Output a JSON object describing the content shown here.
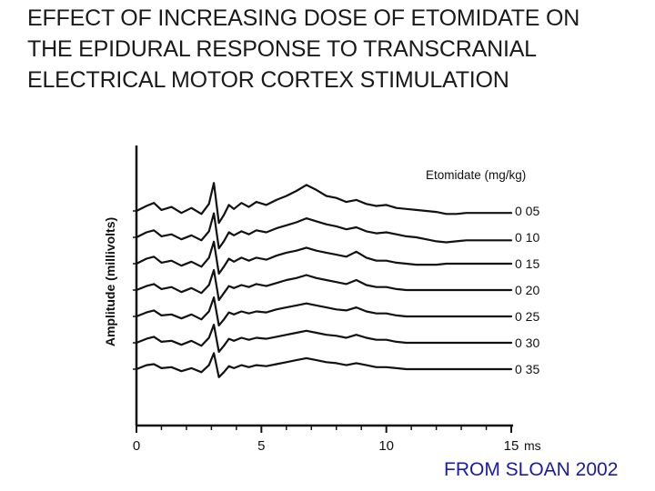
{
  "slide": {
    "title_lines": [
      "EFFECT OF INCREASING DOSE OF ETOMIDATE ON",
      "THE EPIDURAL RESPONSE TO TRANSCRANIAL",
      "ELECTRICAL MOTOR CORTEX STIMULATION"
    ],
    "credit": "FROM SLOAN 2002"
  },
  "chart_data": {
    "type": "line",
    "title": "",
    "xlabel": "ms",
    "ylabel": "Amplitude (millivolts)",
    "legend_title": "Etomidate (mg/kg)",
    "x_ticks": [
      "0",
      "5",
      "10",
      "15"
    ],
    "xlim": [
      0,
      15
    ],
    "y_units": "relative (traces vertically offset, no amplitude scale shown)",
    "grid": false,
    "series": [
      {
        "name": "0 05",
        "dose_mg_per_kg": 0.05,
        "x": [
          0,
          0.4,
          0.7,
          1,
          1.4,
          1.8,
          2.2,
          2.6,
          2.9,
          3.1,
          3.3,
          3.5,
          3.7,
          3.9,
          4.2,
          4.5,
          4.8,
          5.2,
          5.6,
          6,
          6.4,
          6.8,
          7.2,
          7.6,
          8,
          8.4,
          8.8,
          9.2,
          9.6,
          10,
          10.4,
          10.8,
          11.2,
          11.6,
          12,
          12.4,
          12.8,
          13.2,
          13.6,
          14,
          14.4,
          14.8,
          15
        ],
        "y": [
          0,
          0.5,
          0.8,
          0.1,
          0.4,
          -0.2,
          0.3,
          -0.3,
          0.7,
          2.8,
          -1.2,
          -0.4,
          0.6,
          0.2,
          0.8,
          0.4,
          0.9,
          0.6,
          1.1,
          1.5,
          2,
          2.6,
          2.1,
          1.5,
          1.3,
          0.9,
          1.1,
          0.7,
          0.5,
          0.6,
          0.3,
          0.2,
          0.1,
          0,
          -0.1,
          -0.3,
          -0.3,
          -0.2,
          -0.2,
          -0.2,
          -0.2,
          -0.2,
          -0.2
        ]
      },
      {
        "name": "0 10",
        "dose_mg_per_kg": 0.1,
        "x": [
          0,
          0.4,
          0.7,
          1,
          1.4,
          1.8,
          2.2,
          2.6,
          2.9,
          3.1,
          3.3,
          3.5,
          3.7,
          3.9,
          4.2,
          4.5,
          4.8,
          5.2,
          5.6,
          6,
          6.4,
          6.8,
          7.2,
          7.6,
          8,
          8.4,
          8.8,
          9.2,
          9.6,
          10,
          10.4,
          10.8,
          11.2,
          11.6,
          12,
          12.4,
          12.8,
          13.2,
          13.6,
          14,
          14.4,
          14.8,
          15
        ],
        "y": [
          0,
          0.5,
          0.7,
          0.1,
          0.3,
          -0.2,
          0.2,
          -0.3,
          0.6,
          2.4,
          -1.1,
          -0.4,
          0.5,
          0.2,
          0.6,
          0.3,
          0.7,
          0.5,
          0.9,
          1.2,
          1.5,
          1.9,
          1.6,
          1.3,
          1.1,
          0.8,
          1,
          0.6,
          0.4,
          0.5,
          0.3,
          0.1,
          0,
          -0.2,
          -0.4,
          -0.5,
          -0.4,
          -0.3,
          -0.3,
          -0.3,
          -0.3,
          -0.3,
          -0.3
        ]
      },
      {
        "name": "0 15",
        "dose_mg_per_kg": 0.15,
        "x": [
          0,
          0.4,
          0.7,
          1,
          1.4,
          1.8,
          2.2,
          2.6,
          2.9,
          3.1,
          3.3,
          3.5,
          3.7,
          3.9,
          4.2,
          4.5,
          4.8,
          5.2,
          5.6,
          6,
          6.4,
          6.8,
          7.2,
          7.6,
          8,
          8.4,
          8.8,
          9.2,
          9.6,
          10,
          10.4,
          10.8,
          11.2,
          11.6,
          12,
          12.4,
          12.8,
          13.2,
          13.6,
          14,
          14.4,
          14.8,
          15
        ],
        "y": [
          0,
          0.5,
          0.7,
          0.1,
          0.3,
          -0.2,
          0.2,
          -0.3,
          0.6,
          2.2,
          -1,
          -0.3,
          0.5,
          0.2,
          0.6,
          0.3,
          0.6,
          0.4,
          0.8,
          1.1,
          1.3,
          1.6,
          1.3,
          1.1,
          0.9,
          0.7,
          1.2,
          0.6,
          0.3,
          0.3,
          0.1,
          0,
          -0.1,
          -0.1,
          -0.1,
          0,
          0,
          0,
          0,
          0,
          0,
          0,
          0
        ]
      },
      {
        "name": "0 20",
        "dose_mg_per_kg": 0.2,
        "x": [
          0,
          0.4,
          0.7,
          1,
          1.4,
          1.8,
          2.2,
          2.6,
          2.9,
          3.1,
          3.3,
          3.5,
          3.7,
          3.9,
          4.2,
          4.5,
          4.8,
          5.2,
          5.6,
          6,
          6.4,
          6.8,
          7.2,
          7.6,
          8,
          8.4,
          8.8,
          9.2,
          9.6,
          10,
          10.4,
          10.8,
          11.2,
          11.6,
          12,
          12.4,
          12.8,
          13.2,
          13.6,
          14,
          14.4,
          14.8,
          15
        ],
        "y": [
          0,
          0.4,
          0.6,
          0.1,
          0.3,
          -0.2,
          0.2,
          -0.3,
          0.5,
          2,
          -1,
          -0.3,
          0.4,
          0.2,
          0.5,
          0.3,
          0.6,
          0.4,
          0.7,
          1,
          1.2,
          1.5,
          1.2,
          1,
          0.8,
          0.6,
          1,
          0.5,
          0.3,
          0.3,
          0.1,
          0,
          0,
          0,
          0,
          0,
          0,
          0,
          0,
          0,
          0,
          0,
          0
        ]
      },
      {
        "name": "0 25",
        "dose_mg_per_kg": 0.25,
        "x": [
          0,
          0.4,
          0.7,
          1,
          1.4,
          1.8,
          2.2,
          2.6,
          2.9,
          3.1,
          3.3,
          3.5,
          3.7,
          3.9,
          4.2,
          4.5,
          4.8,
          5.2,
          5.6,
          6,
          6.4,
          6.8,
          7.2,
          7.6,
          8,
          8.4,
          8.8,
          9.2,
          9.6,
          10,
          10.4,
          10.8,
          11.2,
          11.6,
          12,
          12.4,
          12.8,
          13.2,
          13.6,
          14,
          14.4,
          14.8,
          15
        ],
        "y": [
          0,
          0.4,
          0.6,
          0.1,
          0.2,
          -0.2,
          0.2,
          -0.3,
          0.5,
          1.9,
          -0.9,
          -0.3,
          0.4,
          0.2,
          0.5,
          0.3,
          0.5,
          0.4,
          0.7,
          0.9,
          1.1,
          1.3,
          1.1,
          0.9,
          0.7,
          0.6,
          0.9,
          0.5,
          0.3,
          0.3,
          0.1,
          0,
          0,
          0,
          0,
          0,
          0,
          0,
          0,
          0,
          0,
          0,
          0
        ]
      },
      {
        "name": "0 30",
        "dose_mg_per_kg": 0.3,
        "x": [
          0,
          0.4,
          0.7,
          1,
          1.4,
          1.8,
          2.2,
          2.6,
          2.9,
          3.1,
          3.3,
          3.5,
          3.7,
          3.9,
          4.2,
          4.5,
          4.8,
          5.2,
          5.6,
          6,
          6.4,
          6.8,
          7.2,
          7.6,
          8,
          8.4,
          8.8,
          9.2,
          9.6,
          10,
          10.4,
          10.8,
          11.2,
          11.6,
          12,
          12.4,
          12.8,
          13.2,
          13.6,
          14,
          14.4,
          14.8,
          15
        ],
        "y": [
          0,
          0.4,
          0.6,
          0.1,
          0.2,
          -0.2,
          0.2,
          -0.3,
          0.5,
          1.8,
          -0.9,
          -0.3,
          0.4,
          0.2,
          0.5,
          0.3,
          0.5,
          0.4,
          0.6,
          0.8,
          1,
          1.2,
          1,
          0.8,
          0.7,
          0.5,
          0.8,
          0.5,
          0.3,
          0.3,
          0.1,
          0,
          0,
          0,
          0,
          0,
          0,
          0,
          0,
          0,
          0,
          0,
          0
        ]
      },
      {
        "name": "0 35",
        "dose_mg_per_kg": 0.35,
        "x": [
          0,
          0.4,
          0.7,
          1,
          1.4,
          1.8,
          2.2,
          2.6,
          2.9,
          3.1,
          3.3,
          3.5,
          3.7,
          3.9,
          4.2,
          4.5,
          4.8,
          5.2,
          5.6,
          6,
          6.4,
          6.8,
          7.2,
          7.6,
          8,
          8.4,
          8.8,
          9.2,
          9.6,
          10,
          10.4,
          10.8,
          11.2,
          11.6,
          12,
          12.4,
          12.8,
          13.2,
          13.6,
          14,
          14.4,
          14.8,
          15
        ],
        "y": [
          0,
          0.4,
          0.5,
          0.1,
          0.2,
          -0.2,
          0.1,
          -0.3,
          0.4,
          1.6,
          -0.8,
          -0.3,
          0.3,
          0.1,
          0.4,
          0.2,
          0.4,
          0.3,
          0.5,
          0.7,
          0.9,
          1.1,
          0.9,
          0.7,
          0.6,
          0.4,
          0.6,
          0.4,
          0.2,
          0.2,
          0.1,
          0,
          0,
          0,
          0,
          0,
          0,
          0,
          0,
          0,
          0,
          0,
          0
        ]
      }
    ]
  }
}
